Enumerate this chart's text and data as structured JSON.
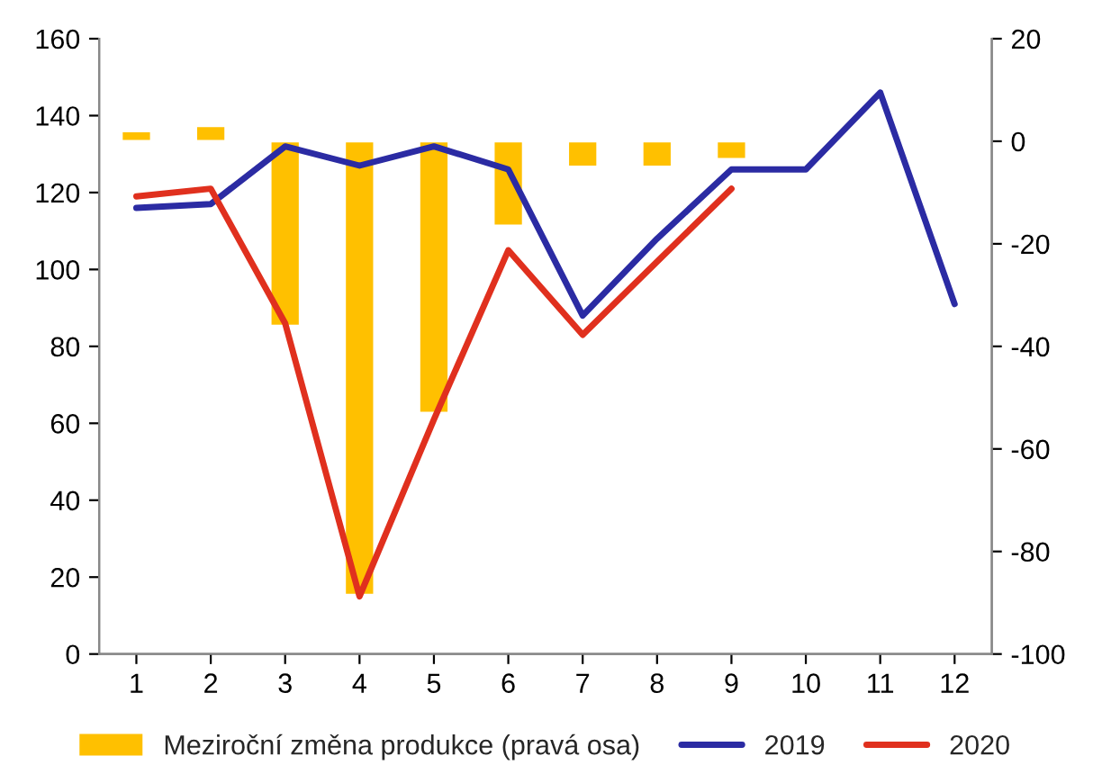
{
  "chart_data": {
    "type": "line",
    "categories": [
      "1",
      "2",
      "3",
      "4",
      "5",
      "6",
      "7",
      "8",
      "9",
      "10",
      "11",
      "12"
    ],
    "series": [
      {
        "name": "Meziroční změna produkce (pravá osa)",
        "type": "bar",
        "axis": "y2",
        "color": "#ffc000",
        "values": [
          2,
          3,
          -36,
          -88.5,
          -53,
          -16.5,
          -5,
          -5,
          -3.5,
          null,
          null,
          null
        ]
      },
      {
        "name": "2019",
        "color": "#2b2ba3",
        "values": [
          116,
          117,
          132,
          127,
          132,
          126,
          88,
          108,
          126,
          126,
          146,
          91
        ]
      },
      {
        "name": "2020",
        "color": "#e0301e",
        "values": [
          119,
          121,
          86,
          15,
          61,
          105,
          83,
          102,
          121,
          null,
          null,
          null
        ]
      }
    ],
    "ylim": [
      0,
      160
    ],
    "yticks": [
      0,
      20,
      40,
      60,
      80,
      100,
      120,
      140,
      160
    ],
    "y2lim": [
      -100,
      20
    ],
    "y2ticks": [
      -100,
      -80,
      -60,
      -40,
      -20,
      0,
      20
    ],
    "grid": false,
    "legend": "bottom",
    "marker": "none",
    "line_style": "solid"
  }
}
